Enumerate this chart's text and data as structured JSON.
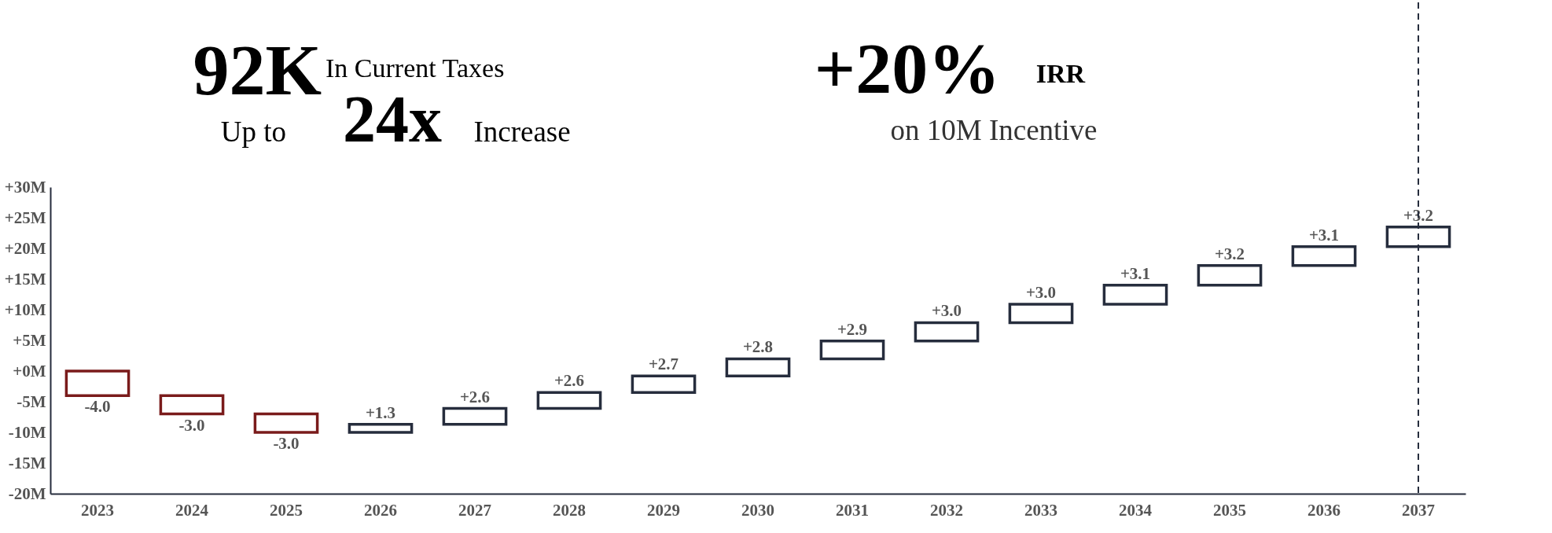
{
  "chart_data": {
    "type": "bar",
    "categories": [
      "2023",
      "2024",
      "2025",
      "2026",
      "2027",
      "2028",
      "2029",
      "2030",
      "2031",
      "2032",
      "2033",
      "2034",
      "2035",
      "2036",
      "2037"
    ],
    "values": [
      -4.0,
      -3.0,
      -3.0,
      1.3,
      2.6,
      2.6,
      2.7,
      2.8,
      2.9,
      3.0,
      3.0,
      3.1,
      3.2,
      3.1,
      3.2
    ],
    "base": [
      0,
      -4.0,
      -7.0,
      -10.0,
      -8.7,
      -6.1,
      -3.5,
      -0.8,
      2.0,
      4.9,
      7.9,
      10.9,
      14.0,
      17.2,
      20.3
    ],
    "colors": [
      "#7a1b1b",
      "#7a1b1b",
      "#7a1b1b",
      "#262d3d",
      "#262d3d",
      "#262d3d",
      "#262d3d",
      "#262d3d",
      "#262d3d",
      "#262d3d",
      "#262d3d",
      "#262d3d",
      "#262d3d",
      "#262d3d",
      "#262d3d"
    ],
    "value_labels": [
      "-4.0",
      "-3.0",
      "-3.0",
      "+1.3",
      "+2.6",
      "+2.6",
      "+2.7",
      "+2.8",
      "+2.9",
      "+3.0",
      "+3.0",
      "+3.1",
      "+3.2",
      "+3.1",
      "+3.2"
    ],
    "ylim": [
      -20,
      30
    ],
    "yticks": [
      {
        "value": -20,
        "label": "-20M"
      },
      {
        "value": -15,
        "label": "-15M"
      },
      {
        "value": -10,
        "label": "-10M"
      },
      {
        "value": -5,
        "label": "-5M"
      },
      {
        "value": 0,
        "label": "+0M"
      },
      {
        "value": 5,
        "label": "+5M"
      },
      {
        "value": 10,
        "label": "+10M"
      },
      {
        "value": 15,
        "label": "+15M"
      },
      {
        "value": 20,
        "label": "+20M"
      },
      {
        "value": 25,
        "label": "+25M"
      },
      {
        "value": 30,
        "label": "+30M"
      }
    ],
    "ref_lines": [
      {
        "axis": "x",
        "value": "2037",
        "color": "#262d3d",
        "line_style": "dashed"
      }
    ],
    "annotations": [
      "92K",
      "In Current Taxes",
      "Up to",
      "24x",
      "Increase",
      "+20%",
      "IRR",
      "on 10M Incentive"
    ],
    "grid": false
  }
}
